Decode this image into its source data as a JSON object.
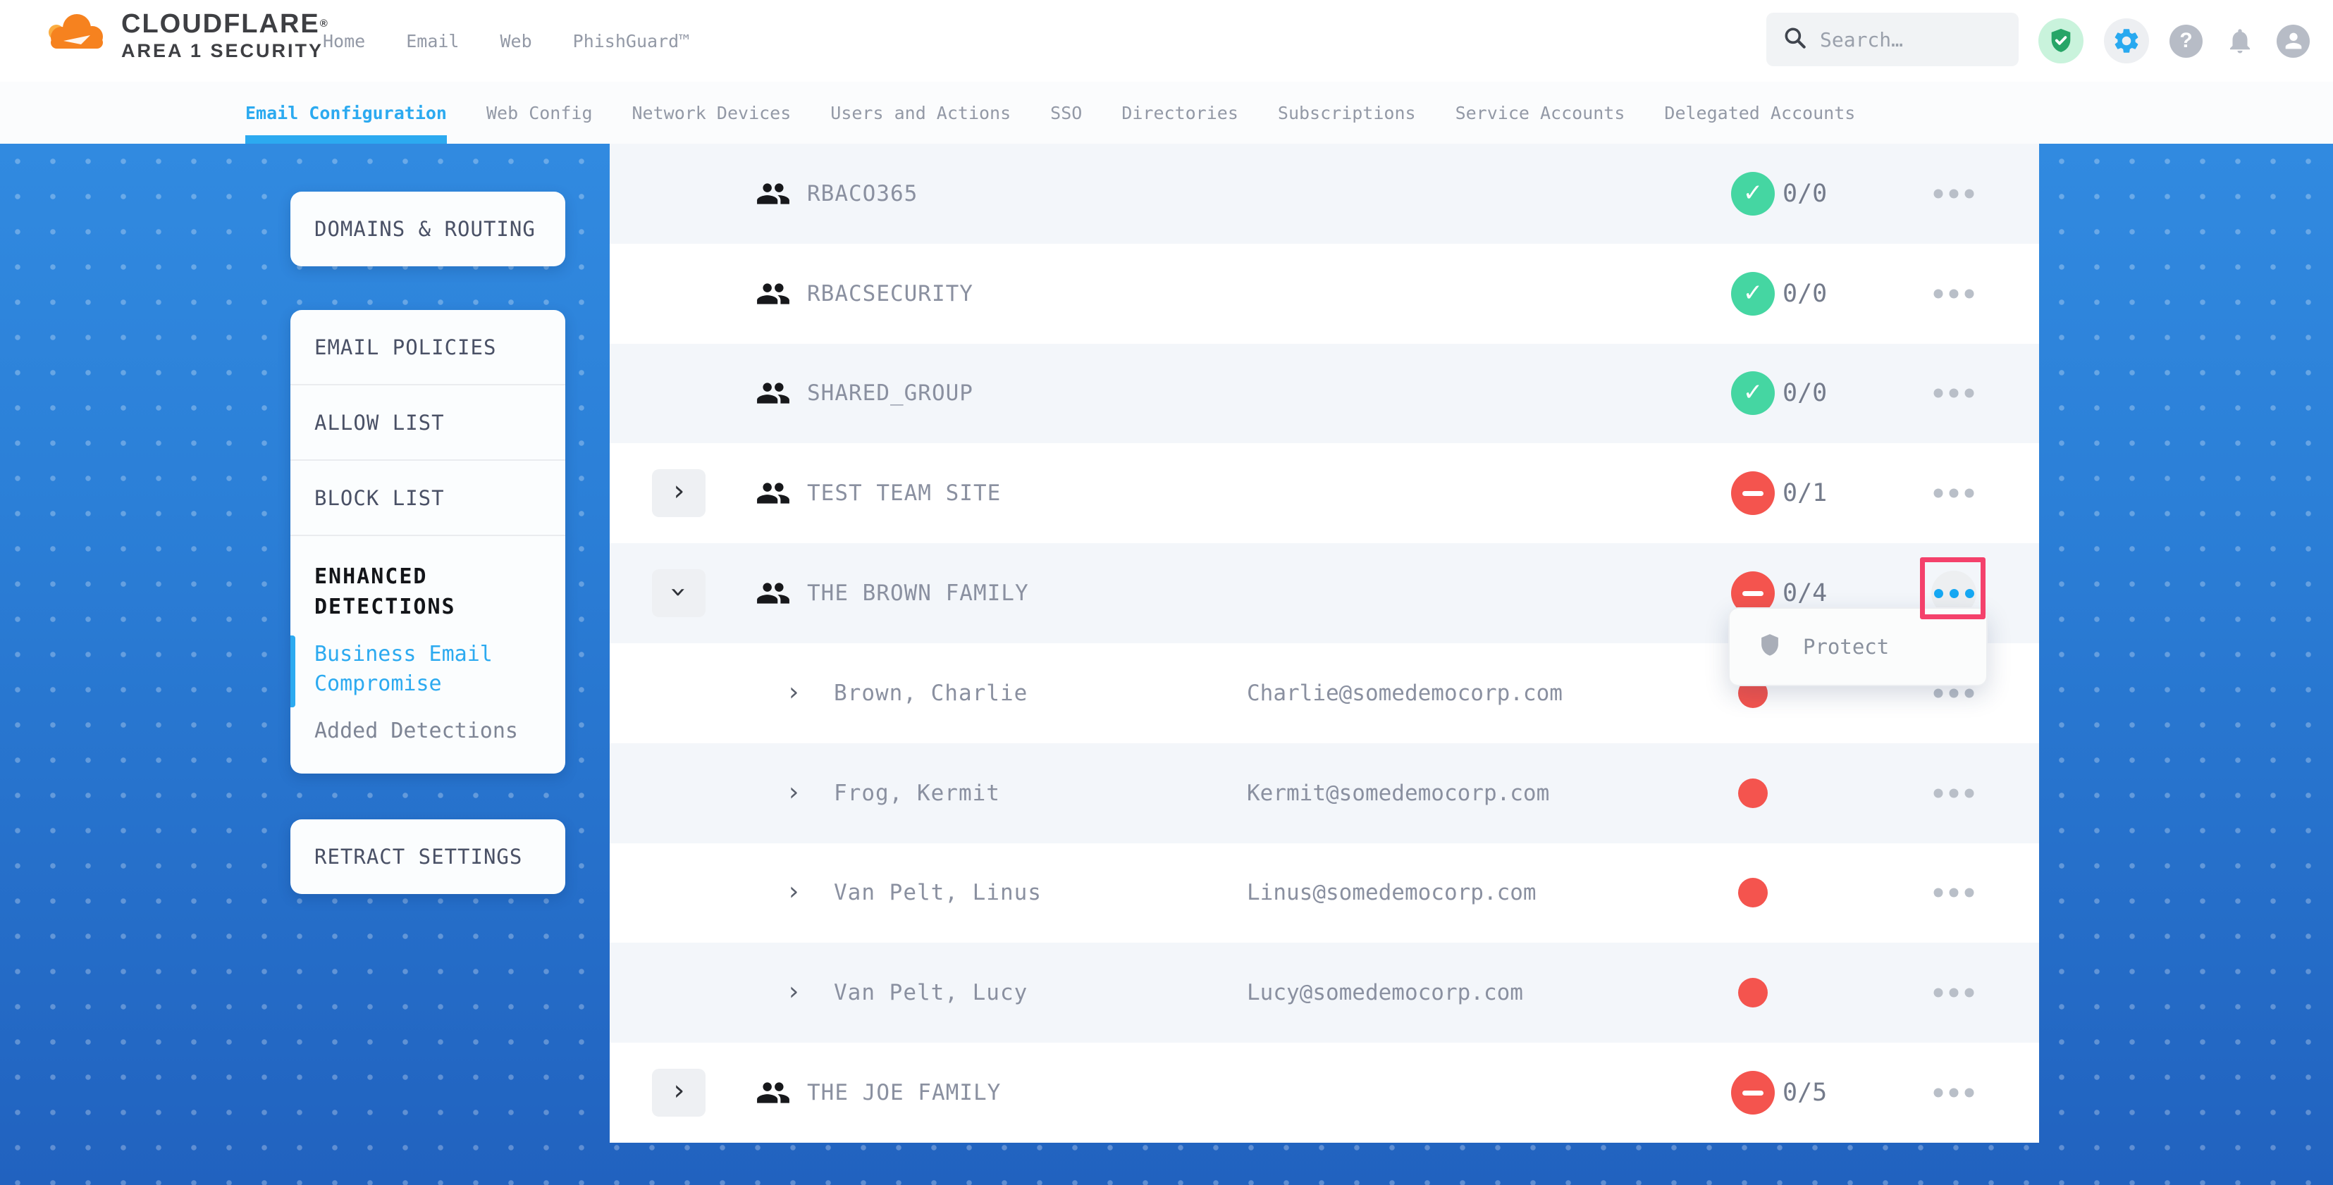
{
  "header": {
    "brand_line1": "CLOUDFLARE",
    "brand_mark": "®",
    "brand_line2": "AREA 1 SECURITY",
    "nav": [
      "Home",
      "Email",
      "Web",
      "PhishGuard™"
    ],
    "search_placeholder": "Search…",
    "help_glyph": "?"
  },
  "tabs": {
    "active": "Email Configuration",
    "items": [
      "Email Configuration",
      "Web Config",
      "Network Devices",
      "Users and Actions",
      "SSO",
      "Directories",
      "Subscriptions",
      "Service Accounts",
      "Delegated Accounts"
    ]
  },
  "sidebar": {
    "domains_card": "DOMAINS & ROUTING",
    "policy_items": [
      "EMAIL POLICIES",
      "ALLOW LIST",
      "BLOCK LIST"
    ],
    "enhanced": {
      "title": "ENHANCED DETECTIONS",
      "items": [
        {
          "label": "Business Email Compromise",
          "active": true
        },
        {
          "label": "Added Detections",
          "active": false
        }
      ]
    },
    "retract_card": "RETRACT SETTINGS"
  },
  "table": {
    "rows": [
      {
        "type": "group",
        "name": "RBACO365",
        "status": "pass",
        "count": "0/0",
        "expandable": false,
        "expanded": false,
        "menu_open": false
      },
      {
        "type": "group",
        "name": "RBACSECURITY",
        "status": "pass",
        "count": "0/0",
        "expandable": false,
        "expanded": false,
        "menu_open": false
      },
      {
        "type": "group",
        "name": "SHARED_GROUP",
        "status": "pass",
        "count": "0/0",
        "expandable": false,
        "expanded": false,
        "menu_open": false
      },
      {
        "type": "group",
        "name": "TEST TEAM SITE",
        "status": "fail",
        "count": "0/1",
        "expandable": true,
        "expanded": false,
        "menu_open": false
      },
      {
        "type": "group",
        "name": "THE BROWN FAMILY",
        "status": "fail",
        "count": "0/4",
        "expandable": true,
        "expanded": true,
        "menu_open": true
      },
      {
        "type": "member",
        "name": "Brown, Charlie",
        "email": "Charlie@somedemocorp.com"
      },
      {
        "type": "member",
        "name": "Frog, Kermit",
        "email": "Kermit@somedemocorp.com"
      },
      {
        "type": "member",
        "name": "Van Pelt, Linus",
        "email": "Linus@somedemocorp.com"
      },
      {
        "type": "member",
        "name": "Van Pelt, Lucy",
        "email": "Lucy@somedemocorp.com"
      },
      {
        "type": "group",
        "name": "THE JOE FAMILY",
        "status": "fail",
        "count": "0/5",
        "expandable": true,
        "expanded": false,
        "menu_open": false
      }
    ]
  },
  "context_menu": {
    "items": [
      {
        "icon": "shield",
        "label": "Protect"
      }
    ]
  },
  "colors": {
    "accent_blue": "#2caaf0",
    "page_blue_top": "#318ae0",
    "page_blue_bottom": "#2162bf",
    "pass_green": "#45d6a2",
    "fail_red": "#f4544e",
    "highlight_pink": "#f4416b",
    "shield_green": "#27a567",
    "gear_blue": "#28a9f0",
    "icon_gray": "#b7bcc6"
  }
}
